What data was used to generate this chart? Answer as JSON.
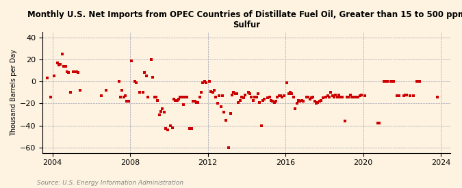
{
  "title": "Monthly U.S. Net Imports from OPEC Countries of Distillate Fuel Oil, Greater than 15 to 500 ppm\nSulfur",
  "ylabel": "Thousand Barrels per Day",
  "source": "Source: U.S. Energy Information Administration",
  "background_color": "#fdf3e0",
  "marker_color": "#cc0000",
  "xlim": [
    2003.5,
    2024.5
  ],
  "ylim": [
    -65,
    45
  ],
  "yticks": [
    -60,
    -40,
    -20,
    0,
    20,
    40
  ],
  "xticks": [
    2004,
    2008,
    2012,
    2016,
    2020,
    2024
  ],
  "points": [
    [
      2003.75,
      3
    ],
    [
      2003.92,
      -14
    ],
    [
      2004.08,
      5
    ],
    [
      2004.25,
      17
    ],
    [
      2004.33,
      15
    ],
    [
      2004.42,
      16
    ],
    [
      2004.5,
      25
    ],
    [
      2004.58,
      14
    ],
    [
      2004.67,
      14
    ],
    [
      2004.75,
      9
    ],
    [
      2004.83,
      8
    ],
    [
      2004.92,
      -10
    ],
    [
      2005.08,
      9
    ],
    [
      2005.17,
      9
    ],
    [
      2005.25,
      9
    ],
    [
      2005.33,
      8
    ],
    [
      2005.42,
      -8
    ],
    [
      2006.5,
      -13
    ],
    [
      2006.75,
      -8
    ],
    [
      2007.42,
      0
    ],
    [
      2007.5,
      -14
    ],
    [
      2007.58,
      -8
    ],
    [
      2007.67,
      -14
    ],
    [
      2007.75,
      -13
    ],
    [
      2007.83,
      -18
    ],
    [
      2007.92,
      -18
    ],
    [
      2008.08,
      19
    ],
    [
      2008.25,
      0
    ],
    [
      2008.33,
      -1
    ],
    [
      2008.5,
      -10
    ],
    [
      2008.67,
      -10
    ],
    [
      2008.75,
      8
    ],
    [
      2008.83,
      5
    ],
    [
      2008.92,
      -14
    ],
    [
      2009.08,
      20
    ],
    [
      2009.17,
      4
    ],
    [
      2009.25,
      -14
    ],
    [
      2009.33,
      -14
    ],
    [
      2009.42,
      -17
    ],
    [
      2009.5,
      -30
    ],
    [
      2009.58,
      -27
    ],
    [
      2009.67,
      -25
    ],
    [
      2009.75,
      -28
    ],
    [
      2009.83,
      -43
    ],
    [
      2009.92,
      -44
    ],
    [
      2010.08,
      -40
    ],
    [
      2010.17,
      -42
    ],
    [
      2010.25,
      -16
    ],
    [
      2010.33,
      -17
    ],
    [
      2010.42,
      -17
    ],
    [
      2010.5,
      -16
    ],
    [
      2010.58,
      -14
    ],
    [
      2010.67,
      -14
    ],
    [
      2010.75,
      -21
    ],
    [
      2010.83,
      -14
    ],
    [
      2010.92,
      -14
    ],
    [
      2011.08,
      -43
    ],
    [
      2011.17,
      -43
    ],
    [
      2011.25,
      -18
    ],
    [
      2011.33,
      -18
    ],
    [
      2011.42,
      -19
    ],
    [
      2011.5,
      -19
    ],
    [
      2011.58,
      -14
    ],
    [
      2011.67,
      -10
    ],
    [
      2011.75,
      -1
    ],
    [
      2011.83,
      0
    ],
    [
      2011.92,
      -1
    ],
    [
      2012.08,
      0
    ],
    [
      2012.17,
      -9
    ],
    [
      2012.25,
      -10
    ],
    [
      2012.33,
      -8
    ],
    [
      2012.42,
      -14
    ],
    [
      2012.5,
      -20
    ],
    [
      2012.58,
      -13
    ],
    [
      2012.67,
      -23
    ],
    [
      2012.75,
      -13
    ],
    [
      2012.83,
      -28
    ],
    [
      2012.92,
      -35
    ],
    [
      2013.08,
      -60
    ],
    [
      2013.17,
      -29
    ],
    [
      2013.25,
      -12
    ],
    [
      2013.33,
      -10
    ],
    [
      2013.42,
      -11
    ],
    [
      2013.5,
      -11
    ],
    [
      2013.58,
      -19
    ],
    [
      2013.67,
      -17
    ],
    [
      2013.75,
      -14
    ],
    [
      2013.83,
      -15
    ],
    [
      2013.92,
      -12
    ],
    [
      2014.08,
      -10
    ],
    [
      2014.17,
      -11
    ],
    [
      2014.25,
      -14
    ],
    [
      2014.33,
      -17
    ],
    [
      2014.42,
      -14
    ],
    [
      2014.5,
      -14
    ],
    [
      2014.58,
      -11
    ],
    [
      2014.67,
      -19
    ],
    [
      2014.75,
      -40
    ],
    [
      2014.83,
      -17
    ],
    [
      2014.92,
      -16
    ],
    [
      2015.08,
      -15
    ],
    [
      2015.17,
      -14
    ],
    [
      2015.25,
      -17
    ],
    [
      2015.33,
      -18
    ],
    [
      2015.42,
      -19
    ],
    [
      2015.5,
      -18
    ],
    [
      2015.58,
      -14
    ],
    [
      2015.67,
      -13
    ],
    [
      2015.75,
      -13
    ],
    [
      2015.83,
      -14
    ],
    [
      2015.92,
      -13
    ],
    [
      2016.08,
      -1
    ],
    [
      2016.17,
      -11
    ],
    [
      2016.25,
      -10
    ],
    [
      2016.33,
      -11
    ],
    [
      2016.42,
      -14
    ],
    [
      2016.5,
      -25
    ],
    [
      2016.58,
      -20
    ],
    [
      2016.67,
      -17
    ],
    [
      2016.75,
      -18
    ],
    [
      2016.83,
      -17
    ],
    [
      2016.92,
      -18
    ],
    [
      2017.08,
      -14
    ],
    [
      2017.17,
      -14
    ],
    [
      2017.25,
      -16
    ],
    [
      2017.33,
      -15
    ],
    [
      2017.42,
      -14
    ],
    [
      2017.5,
      -18
    ],
    [
      2017.58,
      -20
    ],
    [
      2017.67,
      -19
    ],
    [
      2017.75,
      -18
    ],
    [
      2017.83,
      -17
    ],
    [
      2017.92,
      -15
    ],
    [
      2018.08,
      -14
    ],
    [
      2018.17,
      -13
    ],
    [
      2018.25,
      -14
    ],
    [
      2018.33,
      -10
    ],
    [
      2018.42,
      -13
    ],
    [
      2018.5,
      -14
    ],
    [
      2018.58,
      -12
    ],
    [
      2018.67,
      -14
    ],
    [
      2018.75,
      -12
    ],
    [
      2018.83,
      -14
    ],
    [
      2018.92,
      -14
    ],
    [
      2019.08,
      -36
    ],
    [
      2019.17,
      -14
    ],
    [
      2019.25,
      -14
    ],
    [
      2019.33,
      -12
    ],
    [
      2019.42,
      -14
    ],
    [
      2019.5,
      -14
    ],
    [
      2019.58,
      -14
    ],
    [
      2019.67,
      -14
    ],
    [
      2019.75,
      -14
    ],
    [
      2019.83,
      -13
    ],
    [
      2019.92,
      -12
    ],
    [
      2020.08,
      -13
    ],
    [
      2020.75,
      -38
    ],
    [
      2020.83,
      -38
    ],
    [
      2021.08,
      0
    ],
    [
      2021.17,
      0
    ],
    [
      2021.25,
      0
    ],
    [
      2021.42,
      0
    ],
    [
      2021.5,
      0
    ],
    [
      2021.58,
      0
    ],
    [
      2021.75,
      -13
    ],
    [
      2021.83,
      -13
    ],
    [
      2022.08,
      -13
    ],
    [
      2022.17,
      -12
    ],
    [
      2022.25,
      -12
    ],
    [
      2022.42,
      -13
    ],
    [
      2022.58,
      -13
    ],
    [
      2022.75,
      0
    ],
    [
      2022.83,
      0
    ],
    [
      2022.92,
      0
    ],
    [
      2023.83,
      -14
    ]
  ]
}
